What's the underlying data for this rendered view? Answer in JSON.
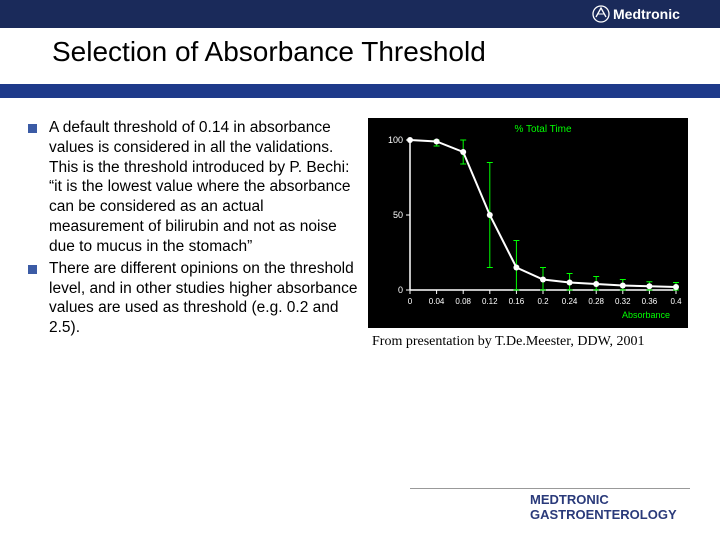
{
  "header": {
    "logo_text": "Medtronic",
    "logo_color": "#ffffff",
    "topbar_bg": "#1a2a5a"
  },
  "title": "Selection of Absorbance Threshold",
  "blueband_color": "#1e3a8a",
  "bullets": [
    "A default threshold of 0.14 in absorbance values is considered in all the validations. This is the threshold introduced by P. Bechi: “it is the lowest value where the absorbance can be considered as an actual measurement of bilirubin and not as noise due to mucus in the stomach”",
    "There are different opinions on the threshold level, and in other studies higher absorbance values are used as threshold (e.g. 0.2 and 2.5)."
  ],
  "chart": {
    "type": "line",
    "background_color": "#000000",
    "axis_color": "#ffffff",
    "line_color": "#ffffff",
    "title": "% Total Time",
    "title_color": "#00ff00",
    "title_fontsize": 10,
    "xlabel": "Absorbance",
    "xlabel_color": "#00ff00",
    "xlabel_fontsize": 9,
    "ylim": [
      0,
      100
    ],
    "yticks": [
      0,
      50,
      100
    ],
    "ytick_labels": [
      "0",
      "50",
      "100"
    ],
    "xlim": [
      0,
      0.4
    ],
    "xticks": [
      0,
      0.04,
      0.08,
      0.12,
      0.16,
      0.2,
      0.24,
      0.28,
      0.32,
      0.36,
      0.4
    ],
    "xtick_labels": [
      "0",
      "0.04",
      "0.08",
      "0.12",
      "0.16",
      "0.2",
      "0.24",
      "0.28",
      "0.32",
      "0.36",
      "0.4"
    ],
    "tick_fontsize": 8,
    "tick_color": "#ffffff",
    "series": {
      "x": [
        0,
        0.04,
        0.08,
        0.12,
        0.16,
        0.2,
        0.24,
        0.28,
        0.32,
        0.36,
        0.4
      ],
      "y": [
        100,
        99,
        92,
        50,
        15,
        7,
        5,
        4,
        3,
        2.5,
        2
      ],
      "err": [
        0,
        3,
        8,
        35,
        18,
        8,
        6,
        5,
        4,
        3,
        3
      ]
    },
    "errorbar_color": "#00ff00",
    "marker_color": "#ffffff",
    "marker_size": 3,
    "line_width": 2
  },
  "caption": "From presentation by T.De.Meester, DDW, 2001",
  "footer": {
    "line1": "MEDTRONIC",
    "line2": "GASTROENTEROLOGY",
    "color": "#2a3a7a"
  }
}
